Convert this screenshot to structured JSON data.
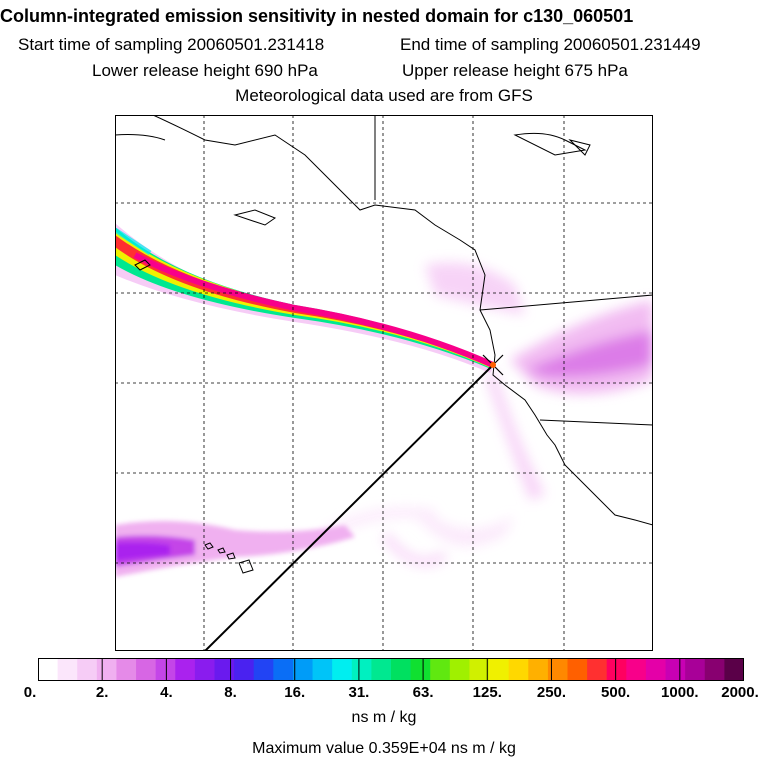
{
  "header": {
    "title": "Column-integrated emission sensitivity in nested domain for c130_060501",
    "start": "Start time of sampling 20060501.231418",
    "end": "End time of sampling 20060501.231449",
    "lower": "Lower release height  690 hPa",
    "upper": "Upper release height  675 hPa",
    "met": "Meteorological data used are from GFS"
  },
  "colorbar": {
    "labels": [
      "0.",
      "2.",
      "4.",
      "8.",
      "16.",
      "31.",
      "63.",
      "125.",
      "250.",
      "500.",
      "1000.",
      "2000."
    ],
    "units": "ns m / kg",
    "colors": [
      "#ffffff",
      "#fbe6fb",
      "#f6ccf6",
      "#f0b0f0",
      "#e58ae8",
      "#d766e4",
      "#c445e8",
      "#aa22ee",
      "#8a1cee",
      "#6a1aee",
      "#4a22f0",
      "#2244f4",
      "#0a6ef6",
      "#009cf8",
      "#00c4f8",
      "#00eef0",
      "#00f0c0",
      "#00e890",
      "#00e060",
      "#10e030",
      "#60e810",
      "#a0f000",
      "#d0f000",
      "#f0f000",
      "#ffd800",
      "#ffb000",
      "#ff8800",
      "#ff6000",
      "#ff3030",
      "#ff0060",
      "#f8008a",
      "#e400a8",
      "#c800b4",
      "#a80098",
      "#880070",
      "#5a0048"
    ]
  },
  "footer": {
    "maximum": "Maximum value  0.359E+04 ns m / kg"
  },
  "map": {
    "receptor_marker": "x-marker"
  }
}
